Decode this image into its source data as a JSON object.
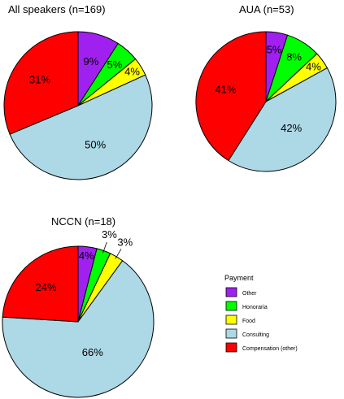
{
  "chart_data": [
    {
      "type": "pie",
      "title": "All speakers (n=169)",
      "categories": [
        "Other",
        "Honoraria",
        "Food",
        "Consulting",
        "Compensation (other)"
      ],
      "values": [
        9,
        5,
        4,
        50,
        31
      ],
      "labels": [
        "9%",
        "5%",
        "4%",
        "50%",
        "31%"
      ]
    },
    {
      "type": "pie",
      "title": "AUA (n=53)",
      "categories": [
        "Other",
        "Honoraria",
        "Food",
        "Consulting",
        "Compensation (other)"
      ],
      "values": [
        5,
        8,
        4,
        42,
        41
      ],
      "labels": [
        "5%",
        "8%",
        "4%",
        "42%",
        "41%"
      ]
    },
    {
      "type": "pie",
      "title": "NCCN (n=18)",
      "categories": [
        "Other",
        "Honoraria",
        "Food",
        "Consulting",
        "Compensation (other)"
      ],
      "values": [
        4,
        3,
        3,
        66,
        24
      ],
      "labels": [
        "4%",
        "3%",
        "3%",
        "66%",
        "24%"
      ]
    }
  ],
  "legend": {
    "title": "Payment",
    "placement": "bottom-right",
    "items": [
      {
        "label": "Other",
        "color": "#a020f0"
      },
      {
        "label": "Honoraria",
        "color": "#00ff00"
      },
      {
        "label": "Food",
        "color": "#ffff00"
      },
      {
        "label": "Consulting",
        "color": "#add8e6"
      },
      {
        "label": "Compensation (other)",
        "color": "#ff0000"
      }
    ]
  }
}
